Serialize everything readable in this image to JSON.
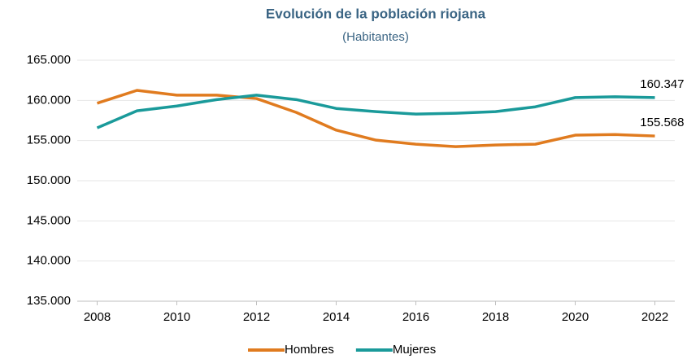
{
  "chart_data": {
    "type": "line",
    "title": "Evolución de la población riojana",
    "subtitle": "(Habitantes)",
    "x": [
      2008,
      2009,
      2010,
      2011,
      2012,
      2013,
      2014,
      2015,
      2016,
      2017,
      2018,
      2019,
      2020,
      2021,
      2022
    ],
    "xlim": [
      2007.5,
      2022.5
    ],
    "xticks": [
      2008,
      2010,
      2012,
      2014,
      2016,
      2018,
      2020,
      2022
    ],
    "ylim": [
      135000,
      165000
    ],
    "yticks": [
      {
        "value": 135000,
        "label": "135.000"
      },
      {
        "value": 140000,
        "label": "140.000"
      },
      {
        "value": 145000,
        "label": "145.000"
      },
      {
        "value": 150000,
        "label": "150.000"
      },
      {
        "value": 155000,
        "label": "155.000"
      },
      {
        "value": 160000,
        "label": "160.000"
      },
      {
        "value": 165000,
        "label": "165.000"
      }
    ],
    "grid": true,
    "legend": "bottom",
    "series": [
      {
        "name": "Hombres",
        "color": "#e07b1f",
        "values": [
          159650,
          161250,
          160650,
          160650,
          160230,
          158500,
          156300,
          155050,
          154550,
          154250,
          154450,
          154550,
          155670,
          155750,
          155568
        ],
        "value_labels": [
          null,
          null,
          null,
          null,
          null,
          null,
          null,
          null,
          null,
          null,
          null,
          null,
          null,
          null,
          "155.568"
        ]
      },
      {
        "name": "Mujeres",
        "color": "#1a9a9a",
        "values": [
          156580,
          158700,
          159300,
          160100,
          160650,
          160100,
          159000,
          158600,
          158300,
          158400,
          158600,
          159200,
          160350,
          160450,
          160347
        ],
        "value_labels": [
          null,
          null,
          null,
          null,
          null,
          null,
          null,
          null,
          null,
          null,
          null,
          null,
          null,
          null,
          "160.347"
        ]
      }
    ]
  }
}
